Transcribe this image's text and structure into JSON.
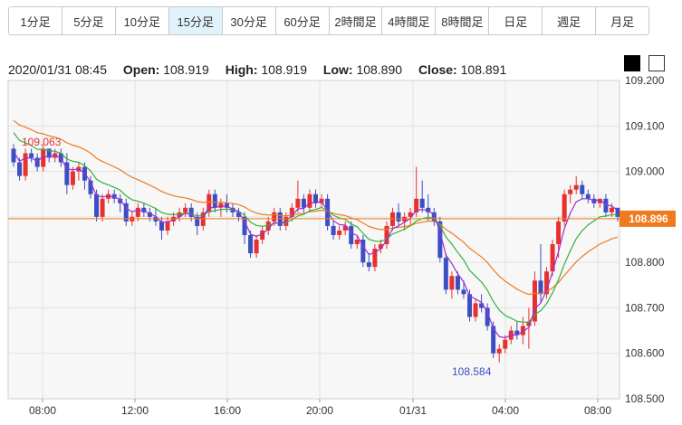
{
  "tabs": [
    {
      "label": "1分足",
      "active": false
    },
    {
      "label": "5分足",
      "active": false
    },
    {
      "label": "10分足",
      "active": false
    },
    {
      "label": "15分足",
      "active": true
    },
    {
      "label": "30分足",
      "active": false
    },
    {
      "label": "60分足",
      "active": false
    },
    {
      "label": "2時間足",
      "active": false
    },
    {
      "label": "4時間足",
      "active": false
    },
    {
      "label": "8時間足",
      "active": false
    },
    {
      "label": "日足",
      "active": false
    },
    {
      "label": "週足",
      "active": false
    },
    {
      "label": "月足",
      "active": false
    }
  ],
  "ohlc": {
    "datetime": "2020/01/31 08:45",
    "open_label": "Open:",
    "open": "108.919",
    "high_label": "High:",
    "high": "108.919",
    "low_label": "Low:",
    "low": "108.890",
    "close_label": "Close:",
    "close": "108.891"
  },
  "colors": {
    "up": "#e8312f",
    "down": "#3b4fc4",
    "ma_short": "#9b2fd6",
    "ma_mid": "#33b23a",
    "ma_long": "#f07a1d",
    "price_line": "#f07a1d",
    "high_annot": "#e8312f",
    "low_annot": "#3b4fc4"
  },
  "chart_data": {
    "type": "candlestick",
    "ylim": [
      108.5,
      109.2
    ],
    "y_ticks": [
      "109.200",
      "109.100",
      "109.000",
      "108.900",
      "108.800",
      "108.700",
      "108.600",
      "108.500"
    ],
    "x_ticks": [
      "08:00",
      "12:00",
      "16:00",
      "20:00",
      "01/31",
      "04:00",
      "08:00"
    ],
    "current_price": "108.896",
    "high_annotation": "109.063",
    "low_annotation": "108.584",
    "candles": [
      [
        109.05,
        109.06,
        109.01,
        109.02
      ],
      [
        109.02,
        109.03,
        108.98,
        108.99
      ],
      [
        108.99,
        109.05,
        108.98,
        109.04
      ],
      [
        109.04,
        109.05,
        109.02,
        109.03
      ],
      [
        109.03,
        109.04,
        109.0,
        109.01
      ],
      [
        109.01,
        109.06,
        109.0,
        109.05
      ],
      [
        109.05,
        109.05,
        109.02,
        109.03
      ],
      [
        109.03,
        109.05,
        109.02,
        109.04
      ],
      [
        109.04,
        109.05,
        109.01,
        109.02
      ],
      [
        109.02,
        109.04,
        108.95,
        108.97
      ],
      [
        108.97,
        109.01,
        108.96,
        109.0
      ],
      [
        109.0,
        109.02,
        108.98,
        109.01
      ],
      [
        109.01,
        109.02,
        108.96,
        108.98
      ],
      [
        108.98,
        108.99,
        108.94,
        108.95
      ],
      [
        108.95,
        108.96,
        108.89,
        108.9
      ],
      [
        108.9,
        108.95,
        108.89,
        108.94
      ],
      [
        108.94,
        108.96,
        108.93,
        108.95
      ],
      [
        108.95,
        108.96,
        108.93,
        108.94
      ],
      [
        108.94,
        108.95,
        108.91,
        108.93
      ],
      [
        108.93,
        108.94,
        108.88,
        108.89
      ],
      [
        108.89,
        108.91,
        108.88,
        108.9
      ],
      [
        108.9,
        108.93,
        108.89,
        108.92
      ],
      [
        108.92,
        108.93,
        108.9,
        108.91
      ],
      [
        108.91,
        108.92,
        108.89,
        108.9
      ],
      [
        108.9,
        108.92,
        108.88,
        108.89
      ],
      [
        108.89,
        108.9,
        108.85,
        108.87
      ],
      [
        108.87,
        108.9,
        108.86,
        108.89
      ],
      [
        108.89,
        108.91,
        108.88,
        108.9
      ],
      [
        108.9,
        108.92,
        108.89,
        108.91
      ],
      [
        108.91,
        108.93,
        108.9,
        108.92
      ],
      [
        108.92,
        108.93,
        108.89,
        108.9
      ],
      [
        108.9,
        108.91,
        108.86,
        108.88
      ],
      [
        108.88,
        108.92,
        108.87,
        108.91
      ],
      [
        108.91,
        108.96,
        108.9,
        108.95
      ],
      [
        108.95,
        108.96,
        108.91,
        108.92
      ],
      [
        108.92,
        108.94,
        108.9,
        108.93
      ],
      [
        108.93,
        108.95,
        108.91,
        108.92
      ],
      [
        108.92,
        108.93,
        108.9,
        108.91
      ],
      [
        108.91,
        108.92,
        108.89,
        108.9
      ],
      [
        108.9,
        108.91,
        108.84,
        108.86
      ],
      [
        108.86,
        108.87,
        108.81,
        108.82
      ],
      [
        108.82,
        108.86,
        108.81,
        108.85
      ],
      [
        108.85,
        108.88,
        108.84,
        108.87
      ],
      [
        108.87,
        108.9,
        108.86,
        108.89
      ],
      [
        108.89,
        108.92,
        108.88,
        108.91
      ],
      [
        108.91,
        108.92,
        108.87,
        108.88
      ],
      [
        108.88,
        108.91,
        108.87,
        108.9
      ],
      [
        108.9,
        108.93,
        108.89,
        108.92
      ],
      [
        108.92,
        108.98,
        108.91,
        108.94
      ],
      [
        108.94,
        108.95,
        108.91,
        108.92
      ],
      [
        108.92,
        108.96,
        108.91,
        108.95
      ],
      [
        108.95,
        108.96,
        108.92,
        108.93
      ],
      [
        108.93,
        108.95,
        108.92,
        108.94
      ],
      [
        108.94,
        108.95,
        108.87,
        108.88
      ],
      [
        108.88,
        108.89,
        108.85,
        108.86
      ],
      [
        108.86,
        108.88,
        108.85,
        108.87
      ],
      [
        108.87,
        108.89,
        108.86,
        108.88
      ],
      [
        108.88,
        108.89,
        108.83,
        108.84
      ],
      [
        108.84,
        108.86,
        108.83,
        108.85
      ],
      [
        108.85,
        108.86,
        108.79,
        108.8
      ],
      [
        108.8,
        108.82,
        108.78,
        108.79
      ],
      [
        108.79,
        108.84,
        108.78,
        108.83
      ],
      [
        108.83,
        108.85,
        108.82,
        108.84
      ],
      [
        108.84,
        108.89,
        108.83,
        108.88
      ],
      [
        108.88,
        108.92,
        108.87,
        108.91
      ],
      [
        108.91,
        108.93,
        108.88,
        108.89
      ],
      [
        108.89,
        108.91,
        108.87,
        108.9
      ],
      [
        108.9,
        108.92,
        108.88,
        108.91
      ],
      [
        108.91,
        109.01,
        108.9,
        108.94
      ],
      [
        108.94,
        108.98,
        108.91,
        108.92
      ],
      [
        108.92,
        108.95,
        108.89,
        108.91
      ],
      [
        108.91,
        108.92,
        108.88,
        108.89
      ],
      [
        108.89,
        108.9,
        108.8,
        108.81
      ],
      [
        108.81,
        108.82,
        108.73,
        108.74
      ],
      [
        108.74,
        108.78,
        108.72,
        108.77
      ],
      [
        108.77,
        108.78,
        108.73,
        108.74
      ],
      [
        108.74,
        108.76,
        108.72,
        108.73
      ],
      [
        108.73,
        108.74,
        108.67,
        108.68
      ],
      [
        108.68,
        108.72,
        108.67,
        108.71
      ],
      [
        108.71,
        108.73,
        108.69,
        108.7
      ],
      [
        108.7,
        108.71,
        108.65,
        108.66
      ],
      [
        108.66,
        108.67,
        108.59,
        108.6
      ],
      [
        108.6,
        108.62,
        108.58,
        108.61
      ],
      [
        108.61,
        108.64,
        108.6,
        108.63
      ],
      [
        108.63,
        108.66,
        108.62,
        108.65
      ],
      [
        108.65,
        108.67,
        108.63,
        108.64
      ],
      [
        108.64,
        108.68,
        108.62,
        108.66
      ],
      [
        108.66,
        108.7,
        108.61,
        108.67
      ],
      [
        108.67,
        108.78,
        108.66,
        108.76
      ],
      [
        108.76,
        108.84,
        108.71,
        108.73
      ],
      [
        108.73,
        108.79,
        108.72,
        108.78
      ],
      [
        108.78,
        108.85,
        108.77,
        108.84
      ],
      [
        108.84,
        108.9,
        108.81,
        108.89
      ],
      [
        108.89,
        108.96,
        108.88,
        108.95
      ],
      [
        108.95,
        108.97,
        108.93,
        108.96
      ],
      [
        108.96,
        108.99,
        108.95,
        108.97
      ],
      [
        108.97,
        108.98,
        108.94,
        108.95
      ],
      [
        108.95,
        108.96,
        108.93,
        108.94
      ],
      [
        108.94,
        108.95,
        108.92,
        108.93
      ],
      [
        108.93,
        108.94,
        108.92,
        108.94
      ],
      [
        108.94,
        108.95,
        108.9,
        108.91
      ],
      [
        108.91,
        108.93,
        108.9,
        108.92
      ],
      [
        108.92,
        108.92,
        108.89,
        108.9
      ]
    ]
  }
}
